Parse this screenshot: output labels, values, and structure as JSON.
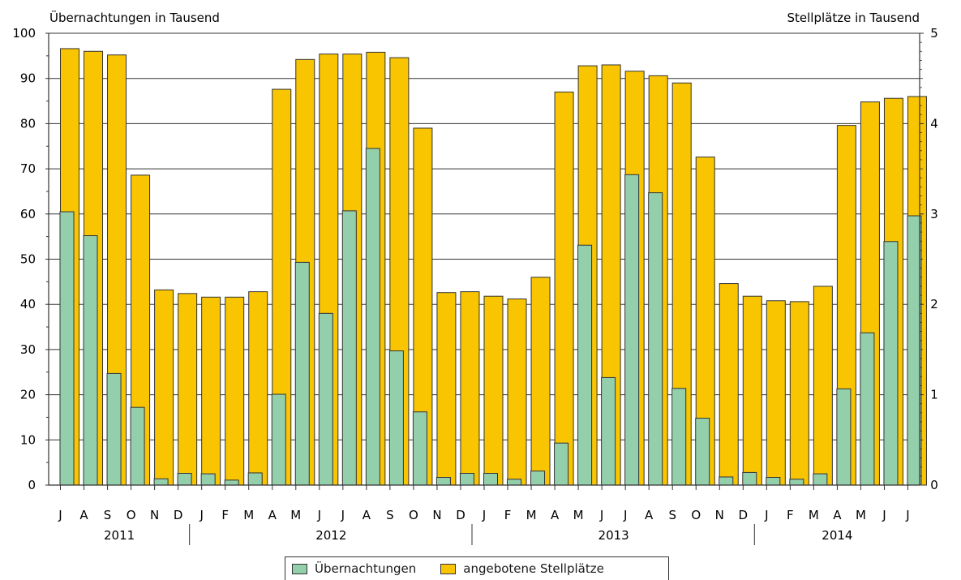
{
  "chart_data": {
    "type": "bar",
    "left_axis_title": "Übernachtungen in Tausend",
    "right_axis_title": "Stellplätze in Tausend",
    "left_ylim": [
      0,
      100
    ],
    "left_ticks": [
      "0",
      "10",
      "20",
      "30",
      "40",
      "50",
      "60",
      "70",
      "80",
      "90",
      "100"
    ],
    "right_ylim": [
      0,
      5
    ],
    "right_ticks": [
      "0",
      "1",
      "2",
      "3",
      "4",
      "5"
    ],
    "grid": true,
    "categories": [
      "J",
      "A",
      "S",
      "O",
      "N",
      "D",
      "J",
      "F",
      "M",
      "A",
      "M",
      "J",
      "J",
      "A",
      "S",
      "O",
      "N",
      "D",
      "J",
      "F",
      "M",
      "A",
      "M",
      "J",
      "J",
      "A",
      "S",
      "O",
      "N",
      "D",
      "J",
      "F",
      "M",
      "A",
      "M",
      "J",
      "J"
    ],
    "years": [
      {
        "label": "2011",
        "start": 0,
        "count": 6
      },
      {
        "label": "2012",
        "start": 6,
        "count": 12
      },
      {
        "label": "2013",
        "start": 18,
        "count": 12
      },
      {
        "label": "2014",
        "start": 30,
        "count": 7
      }
    ],
    "series": [
      {
        "name": "Übernachtungen",
        "axis": "left",
        "color": "#94cfac",
        "values": [
          60.5,
          55.2,
          24.7,
          17.2,
          1.4,
          2.6,
          2.5,
          1.1,
          2.7,
          20.1,
          49.3,
          38.0,
          60.7,
          74.5,
          29.7,
          16.2,
          1.7,
          2.6,
          2.6,
          1.3,
          3.1,
          9.3,
          53.1,
          23.8,
          68.7,
          64.7,
          21.4,
          14.8,
          1.8,
          2.8,
          1.7,
          1.3,
          2.5,
          21.3,
          33.7,
          53.9,
          59.6
        ]
      },
      {
        "name": "angebotene Stellplätze",
        "axis": "right",
        "color": "#f9c500",
        "values": [
          4.83,
          4.8,
          4.76,
          3.43,
          2.16,
          2.12,
          2.08,
          2.08,
          2.14,
          4.38,
          4.71,
          4.77,
          4.77,
          4.79,
          4.73,
          3.95,
          2.13,
          2.14,
          2.09,
          2.06,
          2.3,
          4.35,
          4.64,
          4.65,
          4.58,
          4.53,
          4.45,
          3.63,
          2.23,
          2.09,
          2.04,
          2.03,
          2.2,
          3.98,
          4.24,
          4.28,
          4.3
        ]
      }
    ],
    "legend_placement": "bottom-center"
  }
}
